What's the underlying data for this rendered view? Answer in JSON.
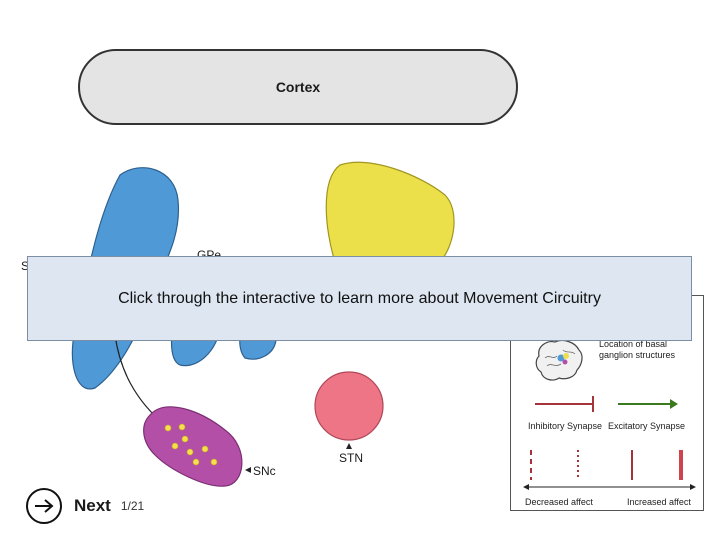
{
  "diagram": {
    "cortex_label": "Cortex",
    "gpe_label": "GPe",
    "striatum_partial_label": "S",
    "snc_label": "SNc",
    "stn_label": "STN",
    "colors": {
      "cortex_fill": "#e4e4e4",
      "striatum_fill": "#4f9ad6",
      "thalamus_fill": "#ece04a",
      "snc_fill": "#b44fa8",
      "snc_dots": "#f4e04d",
      "stn_fill": "#ee7585",
      "inhibitory": "#a4343a",
      "excitatory": "#3c7a1e"
    }
  },
  "legend": {
    "location_label": "Location of basal ganglion structures",
    "inhibitory_label": "Inhibitory Synapse",
    "excitatory_label": "Excitatory Synapse",
    "decreased_label": "Decreased affect",
    "increased_label": "Increased affect"
  },
  "banner": {
    "text": "Click through the interactive to learn more about Movement Circuitry"
  },
  "navigation": {
    "next_label": "Next",
    "page_indicator": "1/21"
  }
}
